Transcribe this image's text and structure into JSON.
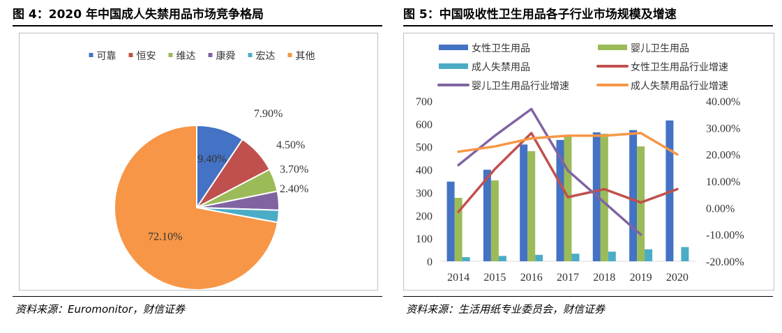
{
  "left": {
    "title": "图 4：2020 年中国成人失禁用品市场竞争格局",
    "source": "资料来源：Euromonitor，财信证券",
    "chart_data": {
      "type": "pie",
      "title": "",
      "legend_position": "top",
      "labels": [
        "可靠",
        "恒安",
        "维达",
        "康舜",
        "宏达",
        "其他"
      ],
      "values": [
        9.4,
        7.9,
        4.5,
        3.7,
        2.4,
        72.1
      ],
      "value_labels": [
        "9.40%",
        "7.90%",
        "4.50%",
        "3.70%",
        "2.40%",
        "72.10%"
      ],
      "colors": [
        "#4472C4",
        "#C0504D",
        "#9BBB59",
        "#8064A2",
        "#4BACC6",
        "#F79646"
      ]
    }
  },
  "right": {
    "title": "图 5：中国吸收性卫生用品各子行业市场规模及增速",
    "source": "资料来源：生活用纸专业委员会，财信证券",
    "chart_data": {
      "type": "bar",
      "title": "",
      "legend_position": "top",
      "categories": [
        "2014",
        "2015",
        "2016",
        "2017",
        "2018",
        "2019",
        "2020"
      ],
      "y_left": {
        "range": [
          0,
          700
        ],
        "ticks": [
          "0",
          "100",
          "200",
          "300",
          "400",
          "500",
          "600",
          "700"
        ]
      },
      "y_right": {
        "range": [
          -20,
          40
        ],
        "ticks": [
          "-20.00%",
          "-10.00%",
          "0.00%",
          "10.00%",
          "20.00%",
          "30.00%",
          "40.00%"
        ]
      },
      "bar_series": [
        {
          "name": "女性卫生用品",
          "color": "#4472C4",
          "values": [
            348,
            400,
            510,
            530,
            563,
            573,
            615
          ]
        },
        {
          "name": "婴儿卫生用品",
          "color": "#9BBB59",
          "values": [
            277,
            353,
            481,
            545,
            557,
            502,
            null
          ]
        },
        {
          "name": "成人失禁用品",
          "color": "#4BACC6",
          "values": [
            18,
            23,
            28,
            33,
            42,
            52,
            62
          ]
        }
      ],
      "line_series": [
        {
          "name": "女性卫生用品行业增速",
          "color": "#C0504D",
          "values": [
            -1.5,
            14.5,
            28,
            4,
            7,
            2,
            7
          ]
        },
        {
          "name": "婴儿卫生用品行业增速",
          "color": "#8064A2",
          "values": [
            16,
            27,
            37,
            14,
            2,
            -10,
            null
          ]
        },
        {
          "name": "成人失禁用品行业增速",
          "color": "#F79646",
          "values": [
            21,
            23,
            26,
            27,
            27,
            28,
            20
          ]
        }
      ]
    }
  }
}
